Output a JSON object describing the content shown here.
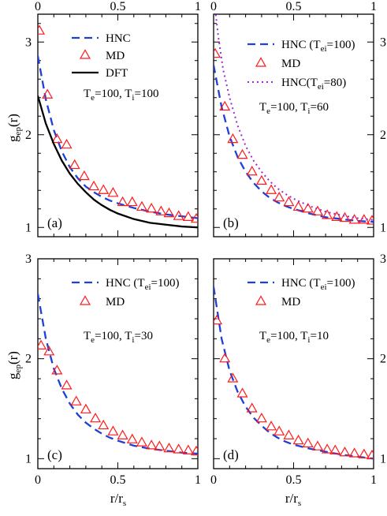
{
  "chart_data": [
    {
      "type": "line",
      "panel_label": "(a)",
      "annotation": {
        "prefix": "T",
        "e_sub": "e",
        "e_val": "=100, T",
        "i_sub": "i",
        "i_val": "=100"
      },
      "xlim": [
        0,
        1
      ],
      "ylim": [
        0.9,
        3.3
      ],
      "x_ticks": [
        "0",
        "0.5",
        "1"
      ],
      "y_ticks": [
        "1",
        "2",
        "3"
      ],
      "legend_position": "top-right",
      "series": [
        {
          "name": "HNC",
          "style": "dashed",
          "color": "#1f3fd6",
          "x": [
            0,
            0.05,
            0.1,
            0.15,
            0.2,
            0.25,
            0.3,
            0.35,
            0.4,
            0.45,
            0.5,
            0.6,
            0.7,
            0.8,
            0.9,
            1.0
          ],
          "y": [
            2.85,
            2.38,
            2.05,
            1.82,
            1.65,
            1.53,
            1.44,
            1.38,
            1.33,
            1.29,
            1.26,
            1.21,
            1.17,
            1.14,
            1.12,
            1.1
          ]
        },
        {
          "name": "MD",
          "style": "triangle",
          "color": "#ff1a1a",
          "x": [
            0.01,
            0.06,
            0.12,
            0.18,
            0.23,
            0.29,
            0.35,
            0.41,
            0.47,
            0.53,
            0.59,
            0.65,
            0.71,
            0.77,
            0.82,
            0.88,
            0.94,
            0.99
          ],
          "y": [
            3.12,
            2.43,
            1.95,
            1.89,
            1.67,
            1.55,
            1.44,
            1.4,
            1.37,
            1.27,
            1.27,
            1.22,
            1.2,
            1.17,
            1.15,
            1.12,
            1.11,
            1.09
          ]
        },
        {
          "name": "DFT",
          "style": "solid",
          "color": "#000000",
          "x": [
            0,
            0.05,
            0.1,
            0.15,
            0.2,
            0.25,
            0.3,
            0.35,
            0.4,
            0.45,
            0.5,
            0.6,
            0.7,
            0.8,
            0.9,
            1.0
          ],
          "y": [
            2.42,
            2.12,
            1.9,
            1.72,
            1.58,
            1.47,
            1.38,
            1.3,
            1.24,
            1.19,
            1.15,
            1.09,
            1.05,
            1.03,
            1.01,
            1.0
          ]
        }
      ]
    },
    {
      "type": "line",
      "panel_label": "(b)",
      "annotation": {
        "prefix": "T",
        "e_sub": "e",
        "e_val": "=100, T",
        "i_sub": "i",
        "i_val": "=60"
      },
      "xlim": [
        0,
        1
      ],
      "ylim": [
        0.9,
        3.3
      ],
      "x_ticks": [
        "0",
        "0.5",
        "1"
      ],
      "y_ticks": [
        "1",
        "2",
        "3"
      ],
      "legend_position": "top-right",
      "series": [
        {
          "name": "HNC (T",
          "name_sub": "ei",
          "name_tail": "=100)",
          "style": "dashed",
          "color": "#1f3fd6",
          "x": [
            0,
            0.05,
            0.1,
            0.15,
            0.2,
            0.25,
            0.3,
            0.35,
            0.4,
            0.45,
            0.5,
            0.6,
            0.7,
            0.8,
            0.9,
            1.0
          ],
          "y": [
            2.75,
            2.3,
            1.98,
            1.76,
            1.6,
            1.48,
            1.39,
            1.32,
            1.27,
            1.23,
            1.2,
            1.15,
            1.11,
            1.09,
            1.07,
            1.06
          ]
        },
        {
          "name": "MD",
          "style": "triangle",
          "color": "#ff1a1a",
          "x": [
            0.01,
            0.07,
            0.12,
            0.18,
            0.24,
            0.3,
            0.36,
            0.41,
            0.47,
            0.53,
            0.59,
            0.65,
            0.71,
            0.77,
            0.82,
            0.88,
            0.94,
            0.99
          ],
          "y": [
            2.87,
            2.3,
            1.95,
            1.78,
            1.6,
            1.5,
            1.4,
            1.32,
            1.27,
            1.22,
            1.2,
            1.17,
            1.13,
            1.11,
            1.1,
            1.08,
            1.08,
            1.07
          ]
        },
        {
          "name": "HNC(T",
          "name_sub": "ei",
          "name_tail": "=80)",
          "style": "dotted",
          "color": "#9d2ad6",
          "x": [
            0,
            0.03,
            0.06,
            0.1,
            0.15,
            0.2,
            0.25,
            0.3,
            0.35,
            0.4,
            0.45,
            0.5,
            0.6,
            0.7,
            0.8,
            0.9,
            1.0
          ],
          "y": [
            3.5,
            3.05,
            2.7,
            2.4,
            2.1,
            1.88,
            1.72,
            1.6,
            1.5,
            1.42,
            1.36,
            1.31,
            1.23,
            1.17,
            1.13,
            1.1,
            1.08
          ]
        }
      ]
    },
    {
      "type": "line",
      "panel_label": "(c)",
      "annotation": {
        "prefix": "T",
        "e_sub": "e",
        "e_val": "=100, T",
        "i_sub": "i",
        "i_val": "=30"
      },
      "xlim": [
        0,
        1
      ],
      "ylim": [
        0.9,
        3.0
      ],
      "x_ticks": [
        "0",
        "0.5",
        "1"
      ],
      "y_ticks": [
        "1",
        "2",
        "3"
      ],
      "legend_position": "top-right",
      "series": [
        {
          "name": "HNC (T",
          "name_sub": "ei",
          "name_tail": "=100)",
          "style": "dashed",
          "color": "#1f3fd6",
          "x": [
            0,
            0.05,
            0.1,
            0.15,
            0.2,
            0.25,
            0.3,
            0.35,
            0.4,
            0.45,
            0.5,
            0.6,
            0.7,
            0.8,
            0.9,
            1.0
          ],
          "y": [
            2.65,
            2.2,
            1.9,
            1.7,
            1.55,
            1.44,
            1.36,
            1.3,
            1.25,
            1.21,
            1.18,
            1.13,
            1.1,
            1.08,
            1.06,
            1.05
          ]
        },
        {
          "name": "MD",
          "style": "triangle",
          "color": "#ff1a1a",
          "x": [
            0.02,
            0.07,
            0.12,
            0.18,
            0.24,
            0.3,
            0.36,
            0.41,
            0.47,
            0.53,
            0.59,
            0.65,
            0.71,
            0.76,
            0.82,
            0.88,
            0.94,
            0.99
          ],
          "y": [
            2.13,
            2.07,
            1.88,
            1.73,
            1.57,
            1.49,
            1.4,
            1.33,
            1.27,
            1.23,
            1.19,
            1.16,
            1.13,
            1.12,
            1.1,
            1.09,
            1.08,
            1.07
          ]
        }
      ]
    },
    {
      "type": "line",
      "panel_label": "(d)",
      "annotation": {
        "prefix": "T",
        "e_sub": "e",
        "e_val": "=100, T",
        "i_sub": "i",
        "i_val": "=10"
      },
      "xlim": [
        0,
        1
      ],
      "ylim": [
        0.9,
        3.0
      ],
      "x_ticks": [
        "0",
        "0.5",
        "1"
      ],
      "y_ticks": [
        "1",
        "2",
        "3"
      ],
      "legend_position": "top-right",
      "series": [
        {
          "name": "HNC (T",
          "name_sub": "ei",
          "name_tail": "=100)",
          "style": "dashed",
          "color": "#1f3fd6",
          "x": [
            0,
            0.05,
            0.1,
            0.15,
            0.2,
            0.25,
            0.3,
            0.35,
            0.4,
            0.45,
            0.5,
            0.6,
            0.7,
            0.8,
            0.9,
            1.0
          ],
          "y": [
            2.72,
            2.2,
            1.88,
            1.67,
            1.52,
            1.41,
            1.33,
            1.26,
            1.21,
            1.17,
            1.14,
            1.1,
            1.07,
            1.04,
            1.02,
            1.0
          ]
        },
        {
          "name": "MD",
          "style": "triangle",
          "color": "#ff1a1a",
          "x": [
            0.02,
            0.07,
            0.12,
            0.18,
            0.24,
            0.3,
            0.36,
            0.41,
            0.47,
            0.53,
            0.59,
            0.65,
            0.71,
            0.76,
            0.82,
            0.88,
            0.94,
            0.99
          ],
          "y": [
            2.38,
            2.0,
            1.8,
            1.65,
            1.5,
            1.4,
            1.32,
            1.27,
            1.23,
            1.18,
            1.15,
            1.12,
            1.09,
            1.08,
            1.06,
            1.05,
            1.04,
            1.03
          ]
        }
      ]
    }
  ],
  "axis_labels": {
    "y_main": "g",
    "y_sub": "ep",
    "y_tail": "(r)",
    "x_main": "r/r",
    "x_sub": "s"
  }
}
